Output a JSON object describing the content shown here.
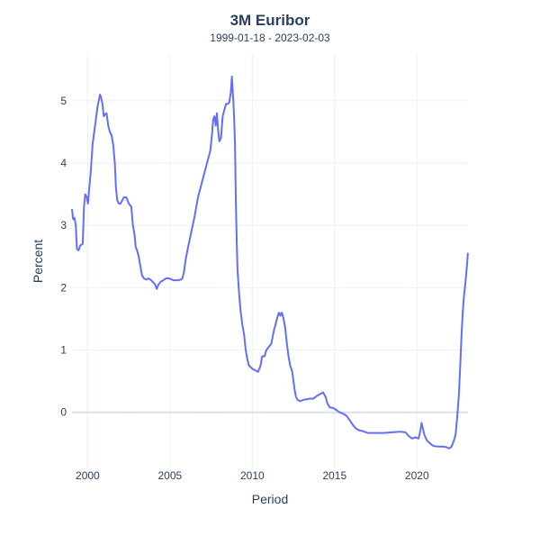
{
  "chart_data": {
    "type": "line",
    "title": "3M Euribor",
    "subtitle": "1999-01-18 - 2023-02-03",
    "xlabel": "Period",
    "ylabel": "Percent",
    "xlim": [
      1999.05,
      2023.1
    ],
    "ylim": [
      -0.9,
      5.75
    ],
    "x_ticks": [
      2000,
      2005,
      2010,
      2015,
      2020
    ],
    "y_ticks": [
      0,
      1,
      2,
      3,
      4,
      5
    ],
    "grid": true,
    "line_color": "#636efa",
    "series": [
      {
        "name": "3M Euribor",
        "points": [
          [
            1999.05,
            3.25
          ],
          [
            1999.12,
            3.1
          ],
          [
            1999.2,
            3.12
          ],
          [
            1999.28,
            3.0
          ],
          [
            1999.35,
            2.62
          ],
          [
            1999.45,
            2.6
          ],
          [
            1999.55,
            2.68
          ],
          [
            1999.7,
            2.7
          ],
          [
            1999.78,
            3.3
          ],
          [
            1999.85,
            3.5
          ],
          [
            1999.95,
            3.45
          ],
          [
            2000.02,
            3.35
          ],
          [
            2000.1,
            3.6
          ],
          [
            2000.2,
            3.9
          ],
          [
            2000.3,
            4.3
          ],
          [
            2000.45,
            4.6
          ],
          [
            2000.6,
            4.9
          ],
          [
            2000.75,
            5.1
          ],
          [
            2000.82,
            5.05
          ],
          [
            2000.9,
            4.95
          ],
          [
            2000.98,
            4.75
          ],
          [
            2001.05,
            4.78
          ],
          [
            2001.15,
            4.8
          ],
          [
            2001.25,
            4.6
          ],
          [
            2001.35,
            4.5
          ],
          [
            2001.45,
            4.45
          ],
          [
            2001.55,
            4.3
          ],
          [
            2001.65,
            4.0
          ],
          [
            2001.72,
            3.6
          ],
          [
            2001.8,
            3.4
          ],
          [
            2001.9,
            3.35
          ],
          [
            2002.0,
            3.35
          ],
          [
            2002.1,
            3.4
          ],
          [
            2002.2,
            3.45
          ],
          [
            2002.35,
            3.45
          ],
          [
            2002.5,
            3.35
          ],
          [
            2002.65,
            3.3
          ],
          [
            2002.75,
            3.0
          ],
          [
            2002.85,
            2.85
          ],
          [
            2002.92,
            2.65
          ],
          [
            2003.0,
            2.6
          ],
          [
            2003.1,
            2.5
          ],
          [
            2003.2,
            2.35
          ],
          [
            2003.3,
            2.2
          ],
          [
            2003.42,
            2.15
          ],
          [
            2003.55,
            2.13
          ],
          [
            2003.7,
            2.15
          ],
          [
            2003.85,
            2.12
          ],
          [
            2004.0,
            2.08
          ],
          [
            2004.1,
            2.05
          ],
          [
            2004.2,
            1.98
          ],
          [
            2004.3,
            2.05
          ],
          [
            2004.45,
            2.1
          ],
          [
            2004.6,
            2.12
          ],
          [
            2004.75,
            2.15
          ],
          [
            2004.9,
            2.15
          ],
          [
            2005.05,
            2.14
          ],
          [
            2005.2,
            2.12
          ],
          [
            2005.35,
            2.12
          ],
          [
            2005.5,
            2.12
          ],
          [
            2005.65,
            2.13
          ],
          [
            2005.75,
            2.15
          ],
          [
            2005.85,
            2.25
          ],
          [
            2005.95,
            2.45
          ],
          [
            2006.1,
            2.65
          ],
          [
            2006.3,
            2.9
          ],
          [
            2006.5,
            3.15
          ],
          [
            2006.7,
            3.45
          ],
          [
            2006.9,
            3.65
          ],
          [
            2007.1,
            3.85
          ],
          [
            2007.3,
            4.05
          ],
          [
            2007.45,
            4.2
          ],
          [
            2007.55,
            4.45
          ],
          [
            2007.62,
            4.7
          ],
          [
            2007.7,
            4.75
          ],
          [
            2007.78,
            4.6
          ],
          [
            2007.85,
            4.8
          ],
          [
            2007.92,
            4.55
          ],
          [
            2008.0,
            4.35
          ],
          [
            2008.1,
            4.4
          ],
          [
            2008.2,
            4.75
          ],
          [
            2008.3,
            4.85
          ],
          [
            2008.4,
            4.95
          ],
          [
            2008.5,
            4.95
          ],
          [
            2008.6,
            4.97
          ],
          [
            2008.7,
            5.15
          ],
          [
            2008.76,
            5.39
          ],
          [
            2008.8,
            5.2
          ],
          [
            2008.85,
            5.0
          ],
          [
            2008.9,
            4.7
          ],
          [
            2008.95,
            4.3
          ],
          [
            2009.0,
            3.4
          ],
          [
            2009.05,
            2.8
          ],
          [
            2009.1,
            2.3
          ],
          [
            2009.2,
            1.9
          ],
          [
            2009.3,
            1.6
          ],
          [
            2009.4,
            1.4
          ],
          [
            2009.5,
            1.25
          ],
          [
            2009.6,
            1.0
          ],
          [
            2009.7,
            0.85
          ],
          [
            2009.8,
            0.75
          ],
          [
            2010.0,
            0.7
          ],
          [
            2010.2,
            0.67
          ],
          [
            2010.35,
            0.65
          ],
          [
            2010.5,
            0.75
          ],
          [
            2010.6,
            0.9
          ],
          [
            2010.75,
            0.9
          ],
          [
            2010.85,
            1.0
          ],
          [
            2011.0,
            1.05
          ],
          [
            2011.15,
            1.1
          ],
          [
            2011.3,
            1.3
          ],
          [
            2011.45,
            1.45
          ],
          [
            2011.55,
            1.55
          ],
          [
            2011.62,
            1.6
          ],
          [
            2011.7,
            1.55
          ],
          [
            2011.8,
            1.6
          ],
          [
            2011.9,
            1.5
          ],
          [
            2012.0,
            1.35
          ],
          [
            2012.1,
            1.1
          ],
          [
            2012.2,
            0.9
          ],
          [
            2012.3,
            0.75
          ],
          [
            2012.42,
            0.66
          ],
          [
            2012.5,
            0.5
          ],
          [
            2012.58,
            0.35
          ],
          [
            2012.65,
            0.25
          ],
          [
            2012.75,
            0.2
          ],
          [
            2012.9,
            0.18
          ],
          [
            2013.1,
            0.2
          ],
          [
            2013.3,
            0.21
          ],
          [
            2013.5,
            0.22
          ],
          [
            2013.7,
            0.22
          ],
          [
            2013.9,
            0.26
          ],
          [
            2014.1,
            0.29
          ],
          [
            2014.3,
            0.32
          ],
          [
            2014.45,
            0.25
          ],
          [
            2014.55,
            0.15
          ],
          [
            2014.7,
            0.08
          ],
          [
            2014.9,
            0.07
          ],
          [
            2015.1,
            0.04
          ],
          [
            2015.3,
            0.0
          ],
          [
            2015.5,
            -0.02
          ],
          [
            2015.7,
            -0.05
          ],
          [
            2015.9,
            -0.12
          ],
          [
            2016.1,
            -0.2
          ],
          [
            2016.3,
            -0.26
          ],
          [
            2016.5,
            -0.29
          ],
          [
            2016.7,
            -0.3
          ],
          [
            2017.0,
            -0.33
          ],
          [
            2017.5,
            -0.33
          ],
          [
            2018.0,
            -0.33
          ],
          [
            2018.5,
            -0.32
          ],
          [
            2019.0,
            -0.31
          ],
          [
            2019.3,
            -0.32
          ],
          [
            2019.5,
            -0.38
          ],
          [
            2019.7,
            -0.42
          ],
          [
            2019.9,
            -0.4
          ],
          [
            2020.1,
            -0.42
          ],
          [
            2020.2,
            -0.3
          ],
          [
            2020.28,
            -0.17
          ],
          [
            2020.35,
            -0.25
          ],
          [
            2020.45,
            -0.36
          ],
          [
            2020.6,
            -0.45
          ],
          [
            2020.8,
            -0.5
          ],
          [
            2021.0,
            -0.54
          ],
          [
            2021.3,
            -0.55
          ],
          [
            2021.6,
            -0.55
          ],
          [
            2021.8,
            -0.56
          ],
          [
            2021.95,
            -0.58
          ],
          [
            2022.1,
            -0.55
          ],
          [
            2022.25,
            -0.45
          ],
          [
            2022.35,
            -0.35
          ],
          [
            2022.42,
            -0.15
          ],
          [
            2022.48,
            0.05
          ],
          [
            2022.55,
            0.3
          ],
          [
            2022.62,
            0.7
          ],
          [
            2022.7,
            1.2
          ],
          [
            2022.78,
            1.6
          ],
          [
            2022.85,
            1.85
          ],
          [
            2022.95,
            2.1
          ],
          [
            2023.05,
            2.4
          ],
          [
            2023.09,
            2.55
          ]
        ]
      }
    ]
  }
}
